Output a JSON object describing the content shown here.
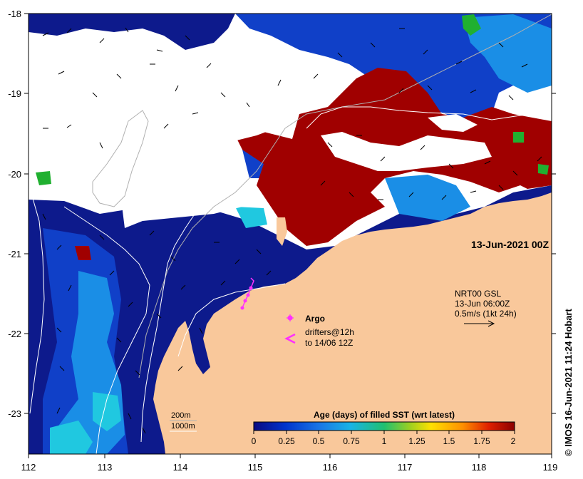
{
  "map": {
    "date_label": "13-Jun-2021 00Z",
    "x_ticks": [
      "112",
      "113",
      "114",
      "115",
      "116",
      "117",
      "118",
      "119"
    ],
    "y_ticks": [
      "-18",
      "-19",
      "-20",
      "-21",
      "-22",
      "-23"
    ],
    "copyright": "© IMOS 16-Jun-2021 11:24 Hobart",
    "colors": {
      "land": "#f9c89b",
      "no_data": "#ffffff",
      "deep_blue": "#0d1a8c",
      "mid_blue": "#1040c8",
      "light_blue": "#1a8ee6",
      "cyan": "#20c8e0",
      "green": "#20b030",
      "dark_red": "#a00000",
      "argo": "#ff30ff",
      "drifter": "#ff30ff"
    }
  },
  "current_legend": {
    "line1": "NRT00 GSL",
    "line2": "13-Jun 06:00Z",
    "line3": "0.5m/s (1kt 24h)"
  },
  "obs_legend": {
    "argo_label": "Argo",
    "drifter_label_1": "drifters@12h",
    "drifter_label_2": "to 14/06 12Z"
  },
  "isobath_legend": {
    "shallow": "200m",
    "deep": "1000m"
  },
  "colorbar": {
    "title": "Age (days) of filled SST (wrt latest)",
    "ticks": [
      "0",
      "0.25",
      "0.5",
      "0.75",
      "1",
      "1.25",
      "1.5",
      "1.75",
      "2"
    ],
    "range": [
      0,
      2
    ],
    "colors": [
      "#0a0a80",
      "#0033cc",
      "#1a75e6",
      "#19b3e6",
      "#20c070",
      "#9ed020",
      "#ffe000",
      "#ff9000",
      "#e02000",
      "#8b0000"
    ]
  }
}
